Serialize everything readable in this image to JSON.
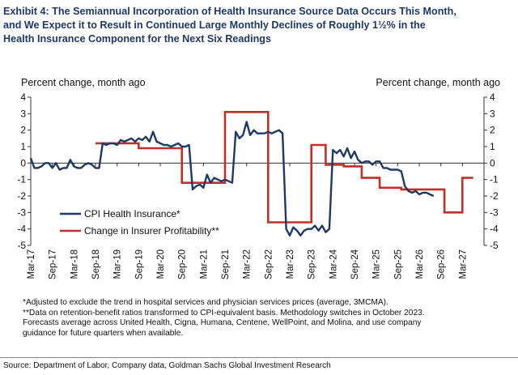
{
  "title_lines": [
    "Exhibit 4: The Semiannual Incorporation of Health Insurance Source Data Occurs This Month,",
    "and We Expect it to Result in Continued Large Monthly Declines of Roughly 1½% in the",
    "Health Insurance Component for the Next Six Readings"
  ],
  "notes": [
    "*Adjusted to exclude the trend in hospital services and physician services prices (average, 3MCMA).",
    "**Data on retention-benefit ratios transformed to CPI-equivalent basis. Methodology switches in October 2023.",
    "Forecasts average across United Health, Cigna, Humana, Centene, WellPoint, and Molina, and use company",
    "guidance for future quarters when available."
  ],
  "source": "Source: Department of Labor, Company data, Goldman Sachs Global Investment Research",
  "chart_data": {
    "type": "line",
    "ylabel_left": "Percent change, month ago",
    "ylabel_right": "Percent change, month ago",
    "ylim": [
      -5,
      4
    ],
    "yticks": [
      "-5",
      "-4",
      "-3",
      "-2",
      "-1",
      "0",
      "1",
      "2",
      "3",
      "4"
    ],
    "xlim": [
      "2017-03",
      "2027-09"
    ],
    "x_tick_labels": [
      "Mar-17",
      "Sep-17",
      "Mar-18",
      "Sep-18",
      "Mar-19",
      "Sep-19",
      "Mar-20",
      "Sep-20",
      "Mar-21",
      "Sep-21",
      "Mar-22",
      "Sep-22",
      "Mar-23",
      "Sep-23",
      "Mar-24",
      "Sep-24",
      "Mar-25",
      "Sep-25",
      "Mar-26",
      "Sep-26",
      "Mar-27"
    ],
    "grid": false,
    "legend_placement": "lower-left",
    "series": [
      {
        "name": "CPI Health Insurance*",
        "color": "#1f3864",
        "x_start": "2017-03",
        "values": [
          0.3,
          -0.3,
          -0.3,
          -0.2,
          0.0,
          0.0,
          -0.3,
          0.0,
          -0.4,
          -0.3,
          -0.3,
          0.2,
          -0.2,
          -0.3,
          -0.3,
          -0.1,
          0.0,
          -0.1,
          -0.3,
          -0.3,
          1.2,
          1.1,
          1.2,
          1.2,
          1.1,
          1.4,
          1.3,
          1.4,
          1.5,
          1.3,
          1.5,
          1.4,
          1.6,
          1.3,
          1.9,
          1.3,
          1.2,
          1.1,
          1.1,
          1.0,
          1.1,
          1.2,
          1.0,
          1.0,
          1.1,
          -1.6,
          -1.4,
          -1.3,
          -1.5,
          -0.7,
          -1.2,
          -0.9,
          -1.0,
          -1.1,
          -1.0,
          -1.1,
          -1.2,
          1.9,
          1.5,
          1.7,
          2.5,
          1.7,
          2.0,
          1.8,
          1.8,
          1.8,
          1.9,
          1.8,
          1.9,
          2.0,
          1.8,
          -4.0,
          -4.4,
          -3.9,
          -4.1,
          -4.4,
          -4.1,
          -4.0,
          -4.0,
          -3.8,
          -4.1,
          -3.8,
          -4.2,
          -4.0,
          0.8,
          0.6,
          0.8,
          0.4,
          0.9,
          0.3,
          0.7,
          0.2,
          0.0,
          0.1,
          0.1,
          -0.1,
          0.1,
          0.1,
          -0.3,
          -0.3,
          -0.4,
          -0.4,
          -0.4,
          -0.5,
          -1.4,
          -1.7,
          -1.8,
          -1.7,
          -1.9,
          -1.8,
          -1.8,
          -1.9,
          -2.0
        ]
      },
      {
        "name": "Change in Insurer Profitability**",
        "color": "#c0302b",
        "steps": [
          {
            "from": "2018-09",
            "to": "2019-09",
            "value": 1.2
          },
          {
            "from": "2019-09",
            "to": "2020-09",
            "value": 0.9
          },
          {
            "from": "2020-09",
            "to": "2021-09",
            "value": -1.2
          },
          {
            "from": "2021-09",
            "to": "2022-09",
            "value": 3.1
          },
          {
            "from": "2022-09",
            "to": "2023-09",
            "value": -3.6
          },
          {
            "from": "2023-09",
            "to": "2024-01",
            "value": 1.1
          },
          {
            "from": "2024-01",
            "to": "2024-06",
            "value": -0.1
          },
          {
            "from": "2024-06",
            "to": "2024-11",
            "value": -0.2
          },
          {
            "from": "2024-11",
            "to": "2025-04",
            "value": -0.9
          },
          {
            "from": "2025-04",
            "to": "2025-10",
            "value": -1.5
          },
          {
            "from": "2025-10",
            "to": "2026-04",
            "value": -1.6
          },
          {
            "from": "2026-04",
            "to": "2026-10",
            "value": -1.6
          },
          {
            "from": "2026-10",
            "to": "2027-03",
            "value": -3.0
          },
          {
            "from": "2027-03",
            "to": "2027-06",
            "value": -0.9
          }
        ]
      }
    ]
  }
}
